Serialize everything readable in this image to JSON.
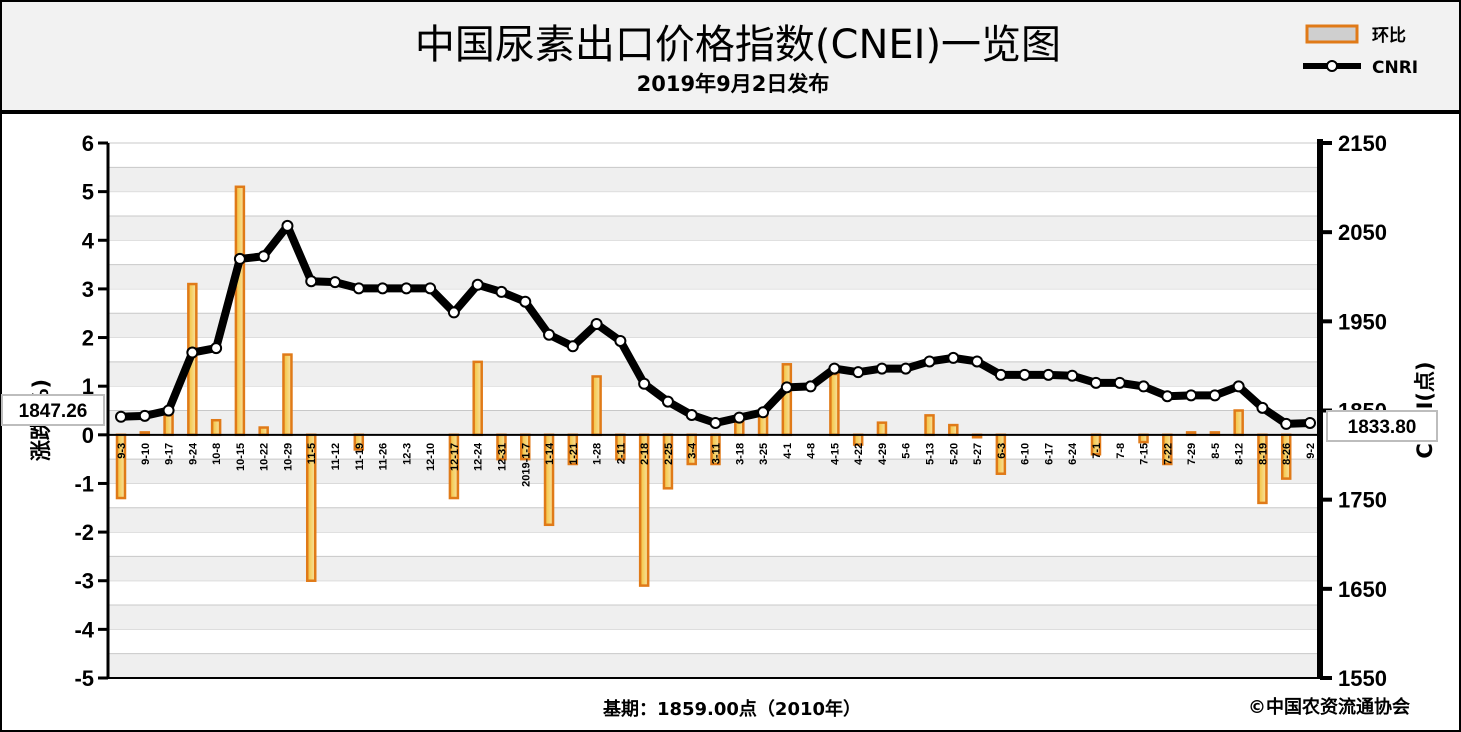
{
  "chart_data": {
    "type": "bar+line",
    "title": "中国尿素出口价格指数(CNEI)一览图",
    "subtitle": "2019年9月2日发布",
    "y_left_label": "涨跌(%)",
    "y_right_label": "CNRI(点)",
    "y_left_range": [
      -5,
      6
    ],
    "y_right_range": [
      1550,
      2150
    ],
    "y_left_ticks": [
      "6",
      "5",
      "4",
      "3",
      "2",
      "1",
      "0",
      "-1",
      "-2",
      "-3",
      "-4",
      "-5"
    ],
    "y_right_ticks": [
      "2150",
      "2050",
      "1950",
      "1850",
      "1750",
      "1650",
      "1550"
    ],
    "categories": [
      "9-3",
      "9-10",
      "9-17",
      "9-24",
      "10-8",
      "10-15",
      "10-22",
      "10-29",
      "11-5",
      "11-12",
      "11-19",
      "11-26",
      "12-3",
      "12-10",
      "12-17",
      "12-24",
      "12-31",
      "2019-1-7",
      "1-14",
      "1-21",
      "1-28",
      "2-11",
      "2-18",
      "2-25",
      "3-4",
      "3-11",
      "3-18",
      "3-25",
      "4-1",
      "4-8",
      "4-15",
      "4-22",
      "4-29",
      "5-6",
      "5-13",
      "5-20",
      "5-27",
      "6-3",
      "6-10",
      "6-17",
      "6-24",
      "7-1",
      "7-8",
      "7-15",
      "7-22",
      "7-29",
      "8-5",
      "8-12",
      "8-19",
      "8-26",
      "9-2"
    ],
    "series": [
      {
        "name": "环比",
        "kind": "bar",
        "values": [
          -1.3,
          0.05,
          0.4,
          3.1,
          0.3,
          5.1,
          0.15,
          1.65,
          -3.0,
          0.0,
          -0.3,
          0.0,
          0.0,
          0.0,
          -1.3,
          1.5,
          -0.5,
          -0.5,
          -1.85,
          -0.6,
          1.2,
          -0.5,
          -3.1,
          -1.1,
          -0.6,
          -0.6,
          0.3,
          0.4,
          1.45,
          0.0,
          1.25,
          -0.2,
          0.25,
          0.0,
          0.4,
          0.2,
          -0.05,
          -0.8,
          0.0,
          0.0,
          0.0,
          -0.4,
          0.0,
          -0.15,
          -0.6,
          0.05,
          0.05,
          0.5,
          -1.4,
          -0.9,
          0.0
        ]
      },
      {
        "name": "CNRI",
        "kind": "line",
        "values": [
          1843,
          1844,
          1850,
          1915,
          1920,
          2020,
          2023,
          2057,
          1995,
          1994,
          1987,
          1987,
          1987,
          1987,
          1960,
          1991,
          1983,
          1972,
          1935,
          1922,
          1947,
          1928,
          1880,
          1860,
          1845,
          1836,
          1842,
          1848,
          1876,
          1877,
          1897,
          1893,
          1897,
          1897,
          1905,
          1909,
          1905,
          1890,
          1890,
          1890,
          1889,
          1881,
          1881,
          1877,
          1866,
          1867,
          1867,
          1877,
          1853,
          1835,
          1836
        ]
      }
    ],
    "callouts": {
      "left": "1847.26",
      "right": "1833.80"
    },
    "footer_base": "基期：1859.00点（2010年）",
    "footer_copyright": "©中国农资流通协会",
    "colors": {
      "bar_stroke": "#e07a18",
      "bar_fill_top": "#f7d88a",
      "bar_fill_bottom": "#f4c23c",
      "line": "#000000",
      "plot_band_a": "#efefef",
      "plot_band_b": "#ffffff"
    }
  }
}
